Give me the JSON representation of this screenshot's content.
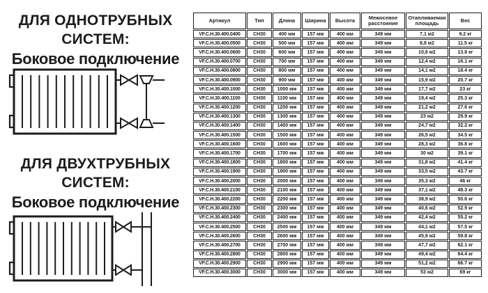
{
  "left_panel": {
    "section_single_pipe": {
      "title_line1": "ДЛЯ ОДНОТРУБНЫХ",
      "title_line2": "СИСТЕМ:",
      "subtitle": "Боковое подключение"
    },
    "section_two_pipe": {
      "title_line1": "ДЛЯ ДВУХТРУБНЫХ",
      "title_line2": "СИСТЕМ:",
      "subtitle": "Боковое подключение"
    },
    "icons": [
      "single-pipe-side-connection-diagram",
      "two-pipe-side-connection-diagram"
    ]
  },
  "table": {
    "headers": [
      "Артикул",
      "Тип",
      "Длина",
      "Ширина",
      "Высота",
      "Межосевое расстояние",
      "Отапливаемая площадь",
      "Вес"
    ],
    "rows": [
      [
        "VF.C.H.30.400.0400",
        "CH30",
        "400 мм",
        "157 мм",
        "400 мм",
        "349 мм",
        "7,1 м2",
        "9.2 кг"
      ],
      [
        "VF.C.H.30.400.0500",
        "CH30",
        "500 мм",
        "157 мм",
        "400 мм",
        "349 мм",
        "8,8 м2",
        "11.5 кг"
      ],
      [
        "VF.C.H.30.400.0600",
        "CH30",
        "600 мм",
        "157 мм",
        "400 мм",
        "349 мм",
        "10,6 м2",
        "13.8 кг"
      ],
      [
        "VF.C.H.30.400.0700",
        "CH30",
        "700 мм",
        "157 мм",
        "400 мм",
        "349 мм",
        "12,4 м2",
        "16.1 кг"
      ],
      [
        "VF.C.H.30.400.0800",
        "CH30",
        "800 мм",
        "157 мм",
        "400 мм",
        "349 мм",
        "14,1 м2",
        "18.4 кг"
      ],
      [
        "VF.C.H.30.400.0900",
        "CH30",
        "900 мм",
        "157 мм",
        "400 мм",
        "349 мм",
        "15,9 м2",
        "20.7 кг"
      ],
      [
        "VF.C.H.30.400.1000",
        "CH30",
        "1000 мм",
        "157 мм",
        "400 мм",
        "349 мм",
        "17,7 м2",
        "23 кг"
      ],
      [
        "VF.C.H.30.400.1100",
        "CH30",
        "1100 мм",
        "157 мм",
        "400 мм",
        "349 мм",
        "19,4 м2",
        "25.3 кг"
      ],
      [
        "VF.C.H.30.400.1200",
        "CH30",
        "1200 мм",
        "157 мм",
        "400 мм",
        "349 мм",
        "21,2 м2",
        "27.6 кг"
      ],
      [
        "VF.C.H.30.400.1300",
        "CH30",
        "1300 мм",
        "157 мм",
        "400 мм",
        "349 мм",
        "23 м2",
        "29.9 кг"
      ],
      [
        "VF.C.H.30.400.1400",
        "CH30",
        "1400 мм",
        "157 мм",
        "400 мм",
        "349 мм",
        "24,7 м2",
        "32.2 кг"
      ],
      [
        "VF.C.H.30.400.1500",
        "CH30",
        "1500 мм",
        "157 мм",
        "400 мм",
        "349 мм",
        "26,5 м2",
        "34.5 кг"
      ],
      [
        "VF.C.H.30.400.1600",
        "CH30",
        "1600 мм",
        "157 мм",
        "400 мм",
        "349 мм",
        "28,3 м2",
        "36.8 кг"
      ],
      [
        "VF.C.H.30.400.1700",
        "CH30",
        "1700 мм",
        "157 мм",
        "400 мм",
        "349 мм",
        "30 м2",
        "39.1 кг"
      ],
      [
        "VF.C.H.30.400.1800",
        "CH30",
        "1800 мм",
        "157 мм",
        "400 мм",
        "349 мм",
        "31,8 м2",
        "41.4 кг"
      ],
      [
        "VF.C.H.30.400.1900",
        "CH30",
        "1900 мм",
        "157 мм",
        "400 мм",
        "349 мм",
        "33,5 м2",
        "43.7 кг"
      ],
      [
        "VF.C.H.30.400.2000",
        "CH30",
        "2000 мм",
        "157 мм",
        "400 мм",
        "349 мм",
        "35,3 м2",
        "46 кг"
      ],
      [
        "VF.C.H.30.400.2100",
        "CH30",
        "2100 мм",
        "157 мм",
        "400 мм",
        "349 мм",
        "37,1 м2",
        "48.3 кг"
      ],
      [
        "VF.C.H.30.400.2200",
        "CH30",
        "2200 мм",
        "157 мм",
        "400 мм",
        "349 мм",
        "38,9 м2",
        "50.6 кг"
      ],
      [
        "VF.C.H.30.400.2300",
        "CH30",
        "2300 мм",
        "157 мм",
        "400 мм",
        "349 мм",
        "40,6 м2",
        "52.9 кг"
      ],
      [
        "VF.C.H.30.400.2400",
        "CH30",
        "2400 мм",
        "157 мм",
        "400 мм",
        "349 мм",
        "42,4 м2",
        "55.2 кг"
      ],
      [
        "VF.C.H.30.400.2500",
        "CH30",
        "2500 мм",
        "157 мм",
        "400 мм",
        "349 мм",
        "44,1 м2",
        "57.5 кг"
      ],
      [
        "VF.C.H.30.400.2600",
        "CH30",
        "2600 мм",
        "157 мм",
        "400 мм",
        "349 мм",
        "45,9 м2",
        "59.8 кг"
      ],
      [
        "VF.C.H.30.400.2700",
        "CH30",
        "2700 мм",
        "157 мм",
        "400 мм",
        "349 мм",
        "47,7 м2",
        "62.1 кг"
      ],
      [
        "VF.C.H.30.400.2800",
        "CH30",
        "2800 мм",
        "157 мм",
        "400 мм",
        "349 мм",
        "49,4 м2",
        "64.4 кг"
      ],
      [
        "VF.C.H.30.400.2900",
        "CH30",
        "2900 мм",
        "157 мм",
        "400 мм",
        "349 мм",
        "51,2 м2",
        "66.7 кг"
      ],
      [
        "VF.C.H.30.400.3000",
        "CH30",
        "3000 мм",
        "157 мм",
        "400 мм",
        "349 мм",
        "53 м2",
        "69 кг"
      ]
    ]
  },
  "colors": {
    "text": "#1c1c1c",
    "border": "#1c1c1c",
    "background": "#ffffff"
  }
}
